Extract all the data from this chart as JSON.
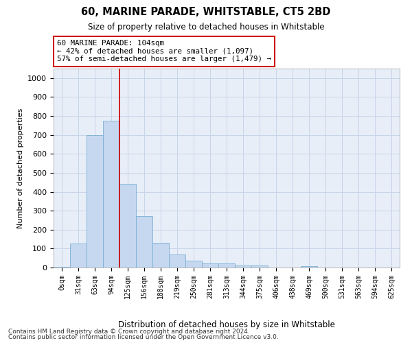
{
  "title": "60, MARINE PARADE, WHITSTABLE, CT5 2BD",
  "subtitle": "Size of property relative to detached houses in Whitstable",
  "xlabel": "Distribution of detached houses by size in Whitstable",
  "ylabel": "Number of detached properties",
  "categories": [
    "0sqm",
    "31sqm",
    "63sqm",
    "94sqm",
    "125sqm",
    "156sqm",
    "188sqm",
    "219sqm",
    "250sqm",
    "281sqm",
    "313sqm",
    "344sqm",
    "375sqm",
    "406sqm",
    "438sqm",
    "469sqm",
    "500sqm",
    "531sqm",
    "563sqm",
    "594sqm",
    "625sqm"
  ],
  "bar_heights": [
    5,
    125,
    700,
    775,
    440,
    270,
    130,
    68,
    38,
    20,
    20,
    10,
    10,
    0,
    0,
    8,
    0,
    0,
    0,
    0,
    0
  ],
  "bar_color": "#c5d8ef",
  "bar_edge_color": "#7aafd4",
  "vline_x": 3.5,
  "vline_color": "#cc0000",
  "annotation_text": "60 MARINE PARADE: 104sqm\n← 42% of detached houses are smaller (1,097)\n57% of semi-detached houses are larger (1,479) →",
  "annotation_box_color": "#cc0000",
  "ylim": [
    0,
    1050
  ],
  "yticks": [
    0,
    100,
    200,
    300,
    400,
    500,
    600,
    700,
    800,
    900,
    1000
  ],
  "grid_color": "#c8d4e8",
  "bg_color": "#e8eef8",
  "footer1": "Contains HM Land Registry data © Crown copyright and database right 2024.",
  "footer2": "Contains public sector information licensed under the Open Government Licence v3.0."
}
